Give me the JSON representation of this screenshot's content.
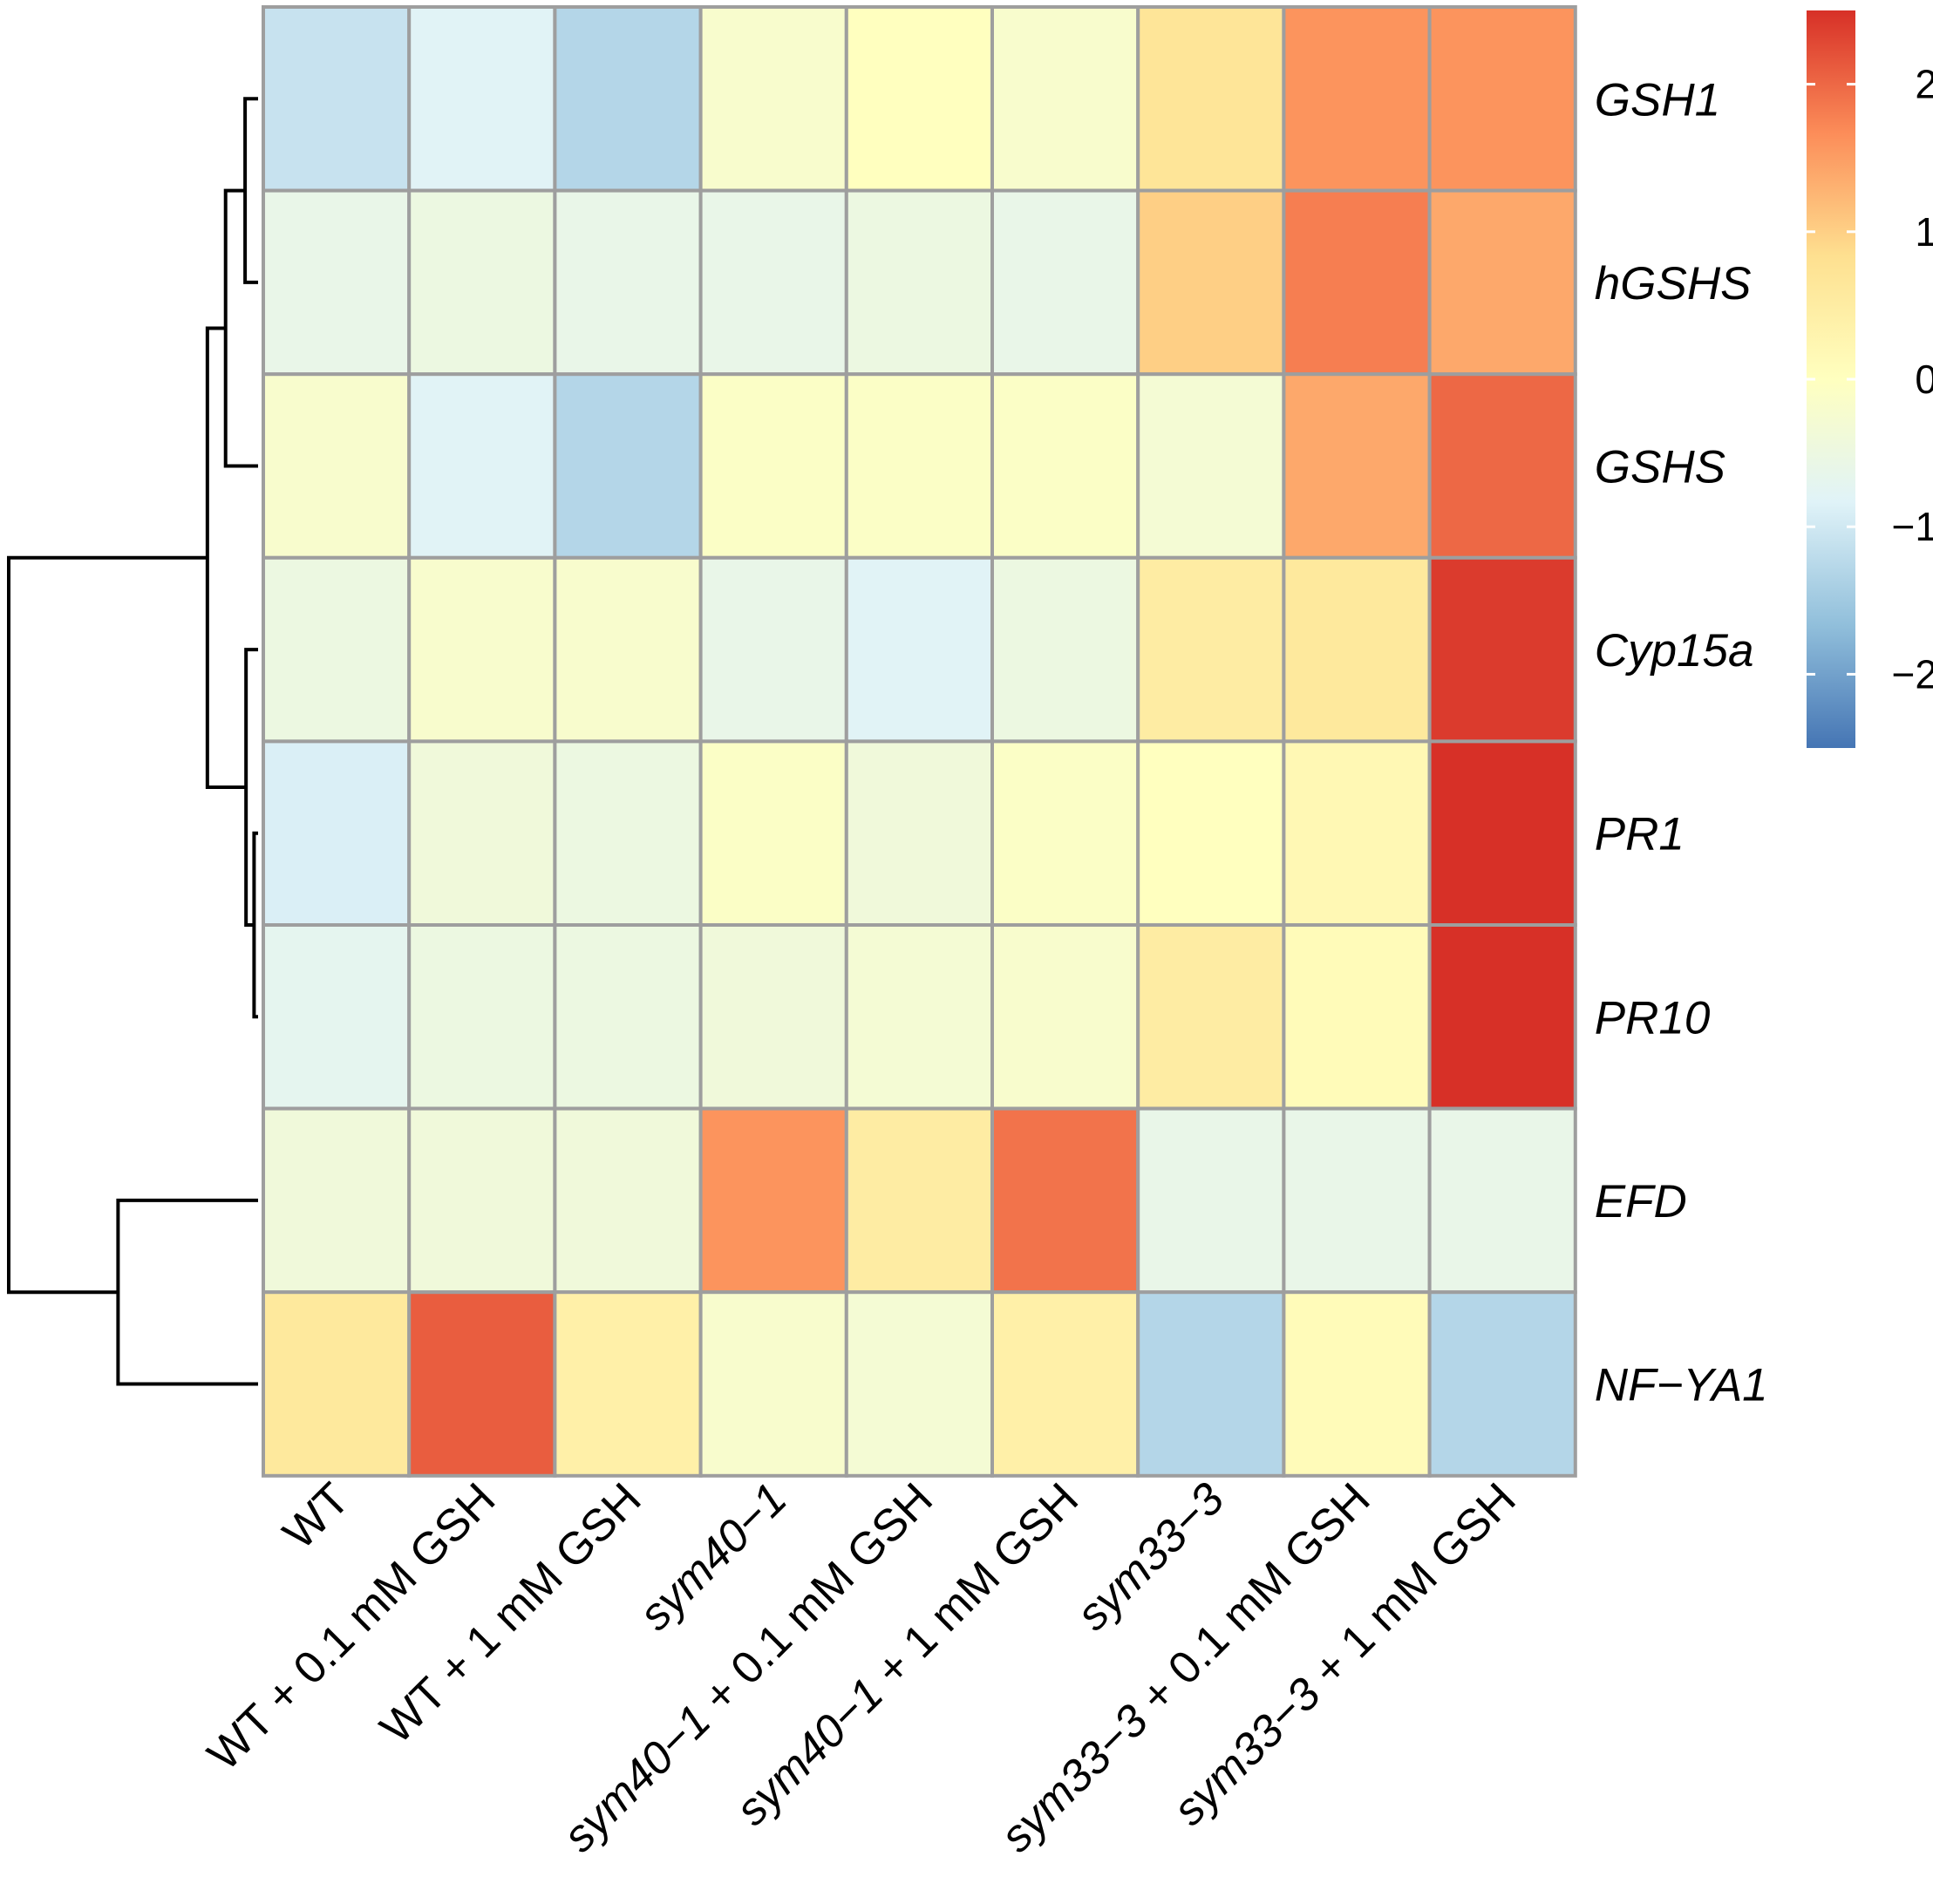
{
  "chart_data": {
    "type": "heatmap",
    "title": "",
    "colormap": [
      "#4575b4",
      "#91bfdb",
      "#e0f3f8",
      "#ffffbf",
      "#fee090",
      "#fc8d59",
      "#d73027"
    ],
    "color_range": [
      -2.5,
      2.5
    ],
    "rows": [
      "GSH1",
      "hGSHS",
      "GSHS",
      "Cyp15a",
      "PR1",
      "PR10",
      "EFD",
      "NF−YA1"
    ],
    "columns": [
      {
        "segments": [
          {
            "text": "WT",
            "italic": false
          }
        ]
      },
      {
        "segments": [
          {
            "text": "WT + 0.1 mM GSH",
            "italic": false
          }
        ]
      },
      {
        "segments": [
          {
            "text": "WT + 1 mM GSH",
            "italic": false
          }
        ]
      },
      {
        "segments": [
          {
            "text": "sym40−1",
            "italic": true
          }
        ]
      },
      {
        "segments": [
          {
            "text": "sym40−1",
            "italic": true
          },
          {
            "text": " + 0.1 mM GSH",
            "italic": false
          }
        ]
      },
      {
        "segments": [
          {
            "text": "sym40−1",
            "italic": true
          },
          {
            "text": " + 1 mM GSH",
            "italic": false
          }
        ]
      },
      {
        "segments": [
          {
            "text": "sym33−3",
            "italic": true
          }
        ]
      },
      {
        "segments": [
          {
            "text": "sym33−3",
            "italic": true
          },
          {
            "text": " + 0.1 mM GSH",
            "italic": false
          }
        ]
      },
      {
        "segments": [
          {
            "text": "sym33−3",
            "italic": true
          },
          {
            "text": " + 1 mM GSH",
            "italic": false
          }
        ]
      }
    ],
    "values": [
      [
        -1.1,
        -0.8,
        -1.3,
        -0.2,
        0.0,
        -0.2,
        0.7,
        1.6,
        1.6
      ],
      [
        -0.6,
        -0.5,
        -0.6,
        -0.6,
        -0.5,
        -0.6,
        1.0,
        1.8,
        1.4
      ],
      [
        -0.2,
        -0.8,
        -1.3,
        -0.1,
        -0.1,
        -0.1,
        -0.3,
        1.4,
        2.0
      ],
      [
        -0.5,
        -0.2,
        -0.2,
        -0.6,
        -0.8,
        -0.5,
        0.5,
        0.6,
        2.4
      ],
      [
        -0.9,
        -0.4,
        -0.5,
        -0.1,
        -0.4,
        -0.1,
        0.0,
        0.2,
        2.5
      ],
      [
        -0.7,
        -0.5,
        -0.5,
        -0.4,
        -0.3,
        -0.2,
        0.5,
        0.1,
        2.5
      ],
      [
        -0.4,
        -0.4,
        -0.4,
        1.6,
        0.5,
        1.9,
        -0.6,
        -0.6,
        -0.6
      ],
      [
        0.6,
        2.1,
        0.4,
        -0.2,
        -0.3,
        0.4,
        -1.3,
        0.1,
        -1.3
      ]
    ],
    "legend": {
      "ticks": [
        2,
        1,
        0,
        -1,
        -2
      ],
      "tick_labels": [
        "2",
        "1",
        "0",
        "−1",
        "−2"
      ]
    },
    "row_dendrogram": true
  }
}
